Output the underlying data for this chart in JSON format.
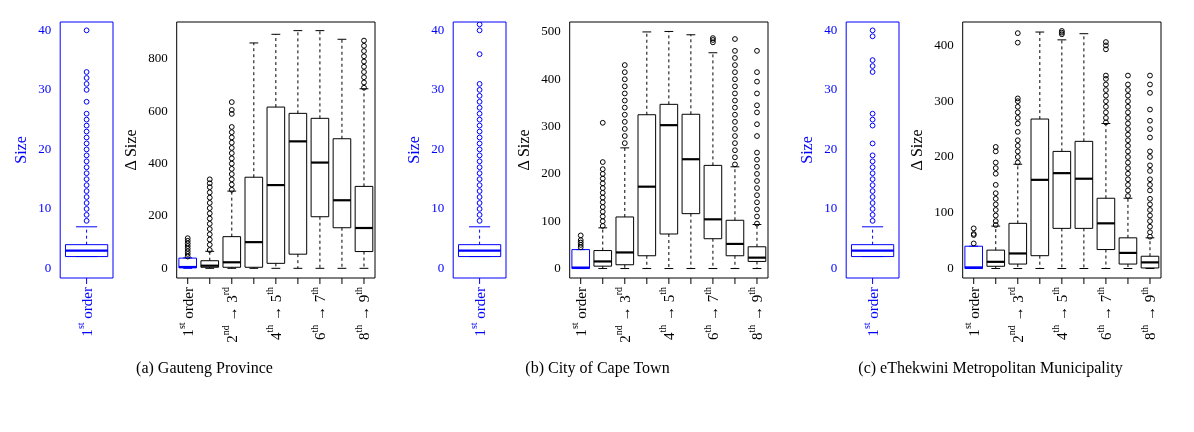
{
  "chart_data": [
    {
      "type": "box",
      "color": "#0000ff",
      "colors": [
        "#0000ff"
      ],
      "ylabel": "Size",
      "ylim": [
        -1.6,
        41.4
      ],
      "yticks": [
        0,
        10,
        20,
        30,
        40
      ],
      "categories": [
        "1$^{st}$ order"
      ],
      "boxes": [
        {
          "low": 2,
          "q1": 2,
          "median": 3,
          "q3": 4,
          "high": 7,
          "outliers": [
            8,
            9,
            10,
            11,
            12,
            13,
            14,
            15,
            16,
            17,
            18,
            19,
            20,
            21,
            22,
            23,
            24,
            25,
            26,
            28,
            30,
            31,
            32,
            33,
            40
          ]
        }
      ],
      "annotations": [
        "(a) Gauteng Province"
      ]
    },
    {
      "type": "box",
      "color": "#000000",
      "colors": [
        "#0000ff",
        "#000000",
        "#000000",
        "#000000",
        "#000000",
        "#000000",
        "#000000",
        "#000000",
        "#000000"
      ],
      "ylabel": "Δ Size",
      "ylim": [
        -37,
        941
      ],
      "yticks": [
        0,
        200,
        400,
        600,
        800
      ],
      "categories": [
        "1$^{st}$ order",
        null,
        "2$^{nd}$ → 3$^{rd}$",
        null,
        "4$^{th}$ → 5$^{th}$",
        null,
        "6$^{th}$ → 7$^{th}$",
        null,
        "8$^{th}$ → 9$^{th}$"
      ],
      "boxes": [
        {
          "low": 0,
          "q1": 2,
          "median": 5,
          "q3": 39,
          "high": 40,
          "outliers": [
            45,
            55,
            65,
            75,
            85,
            95,
            105,
            115
          ]
        },
        {
          "low": 0,
          "q1": 4,
          "median": 10,
          "q3": 29,
          "high": 65,
          "outliers": [
            70,
            90,
            110,
            130,
            150,
            170,
            190,
            210,
            230,
            250,
            270,
            290,
            310,
            325,
            340
          ]
        },
        {
          "low": 0,
          "q1": 4,
          "median": 23,
          "q3": 121,
          "high": 295,
          "outliers": [
            300,
            320,
            340,
            360,
            380,
            400,
            420,
            440,
            460,
            480,
            500,
            520,
            540,
            590,
            605,
            635
          ]
        },
        {
          "low": 0,
          "q1": 4,
          "median": 100,
          "q3": 348,
          "high": 861
        },
        {
          "low": 0,
          "q1": 19,
          "median": 318,
          "q3": 616,
          "high": 894
        },
        {
          "low": 0,
          "q1": 54,
          "median": 485,
          "q3": 592,
          "high": 908
        },
        {
          "low": 0,
          "q1": 197,
          "median": 404,
          "q3": 573,
          "high": 908
        },
        {
          "low": 0,
          "q1": 155,
          "median": 260,
          "q3": 495,
          "high": 875
        },
        {
          "low": 0,
          "q1": 64,
          "median": 154,
          "q3": 313,
          "high": 686,
          "outliers": [
            690,
            710,
            730,
            750,
            770,
            790,
            810,
            830,
            850,
            870
          ]
        }
      ]
    },
    {
      "type": "box",
      "color": "#0000ff",
      "colors": [
        "#0000ff"
      ],
      "ylabel": "Size",
      "ylim": [
        -1.6,
        41.4
      ],
      "yticks": [
        0,
        10,
        20,
        30,
        40
      ],
      "categories": [
        "1$^{st}$ order"
      ],
      "boxes": [
        {
          "low": 2,
          "q1": 2,
          "median": 3,
          "q3": 4,
          "high": 7,
          "outliers": [
            8,
            9,
            10,
            11,
            12,
            13,
            14,
            15,
            16,
            17,
            18,
            19,
            20,
            21,
            22,
            23,
            24,
            25,
            26,
            27,
            28,
            29,
            30,
            31,
            36,
            40,
            41
          ]
        }
      ],
      "annotations": [
        "(b) City of Cape Town"
      ]
    },
    {
      "type": "box",
      "color": "#000000",
      "colors": [
        "#0000ff",
        "#000000",
        "#000000",
        "#000000",
        "#000000",
        "#000000",
        "#000000",
        "#000000",
        "#000000"
      ],
      "ylabel": "Δ Size",
      "ylim": [
        -20,
        521
      ],
      "yticks": [
        0,
        100,
        200,
        300,
        400,
        500
      ],
      "categories": [
        "1$^{st}$ order",
        null,
        "2$^{nd}$ → 3$^{rd}$",
        null,
        "4$^{th}$ → 5$^{th}$",
        null,
        "6$^{th}$ → 7$^{th}$",
        null,
        "8$^{th}$ → 9$^{th}$"
      ],
      "boxes": [
        {
          "low": 0,
          "q1": 0,
          "median": 2,
          "q3": 40,
          "high": 40,
          "outliers": [
            45,
            50,
            55,
            60,
            70
          ]
        },
        {
          "low": 0,
          "q1": 5,
          "median": 15,
          "q3": 38,
          "high": 86,
          "outliers": [
            90,
            100,
            110,
            120,
            130,
            140,
            150,
            160,
            170,
            180,
            190,
            200,
            210,
            225,
            308
          ]
        },
        {
          "low": 0,
          "q1": 8,
          "median": 34,
          "q3": 109,
          "high": 255,
          "outliers": [
            265,
            280,
            295,
            310,
            325,
            340,
            355,
            370,
            385,
            400,
            415,
            430
          ]
        },
        {
          "low": 0,
          "q1": 27,
          "median": 173,
          "q3": 325,
          "high": 500
        },
        {
          "low": 0,
          "q1": 73,
          "median": 303,
          "q3": 347,
          "high": 501
        },
        {
          "low": 0,
          "q1": 116,
          "median": 231,
          "q3": 326,
          "high": 494
        },
        {
          "low": 0,
          "q1": 63,
          "median": 104,
          "q3": 218,
          "high": 456,
          "outliers": [
            478,
            483,
            487
          ]
        },
        {
          "low": 0,
          "q1": 27,
          "median": 52,
          "q3": 102,
          "high": 215,
          "outliers": [
            220,
            235,
            250,
            265,
            280,
            295,
            310,
            325,
            340,
            355,
            370,
            385,
            400,
            415,
            430,
            445,
            460,
            485
          ]
        },
        {
          "low": 0,
          "q1": 15,
          "median": 23,
          "q3": 46,
          "high": 93,
          "outliers": [
            95,
            110,
            125,
            140,
            155,
            170,
            185,
            200,
            215,
            230,
            245,
            280,
            305,
            330,
            345,
            370,
            395,
            415,
            460
          ]
        }
      ]
    },
    {
      "type": "box",
      "color": "#0000ff",
      "colors": [
        "#0000ff"
      ],
      "ylabel": "Size",
      "ylim": [
        -1.6,
        41.4
      ],
      "yticks": [
        0,
        10,
        20,
        30,
        40
      ],
      "categories": [
        "1$^{st}$ order"
      ],
      "boxes": [
        {
          "low": 2,
          "q1": 2,
          "median": 3,
          "q3": 4,
          "high": 7,
          "outliers": [
            8,
            9,
            10,
            11,
            12,
            13,
            14,
            15,
            16,
            17,
            18,
            19,
            21,
            24,
            25,
            26,
            33,
            34,
            35,
            39,
            40
          ]
        }
      ],
      "annotations": [
        "(c) eThekwini Metropolitan Municipality"
      ]
    },
    {
      "type": "box",
      "color": "#000000",
      "colors": [
        "#0000ff",
        "#000000",
        "#000000",
        "#000000",
        "#000000",
        "#000000",
        "#000000",
        "#000000",
        "#000000"
      ],
      "ylabel": "Δ Size",
      "ylim": [
        -17,
        442
      ],
      "yticks": [
        0,
        100,
        200,
        300,
        400
      ],
      "categories": [
        "1$^{st}$ order",
        null,
        "2$^{nd}$ → 3$^{rd}$",
        null,
        "4$^{th}$ → 5$^{th}$",
        null,
        "6$^{th}$ → 7$^{th}$",
        null,
        "8$^{th}$ → 9$^{th}$"
      ],
      "boxes": [
        {
          "low": 0,
          "q1": 0,
          "median": 2,
          "q3": 40,
          "high": 40,
          "outliers": [
            45,
            60,
            62,
            72
          ]
        },
        {
          "low": 0,
          "q1": 4,
          "median": 12,
          "q3": 33,
          "high": 76,
          "outliers": [
            78,
            85,
            95,
            105,
            115,
            125,
            135,
            150,
            170,
            180,
            190,
            210,
            218
          ]
        },
        {
          "low": 0,
          "q1": 8,
          "median": 27,
          "q3": 81,
          "high": 187,
          "outliers": [
            190,
            200,
            210,
            220,
            230,
            245,
            260,
            270,
            280,
            290,
            300,
            305,
            405,
            422
          ]
        },
        {
          "low": 0,
          "q1": 23,
          "median": 159,
          "q3": 268,
          "high": 424
        },
        {
          "low": 0,
          "q1": 72,
          "median": 171,
          "q3": 210,
          "high": 410,
          "outliers": [
            420,
            423,
            426
          ]
        },
        {
          "low": 0,
          "q1": 72,
          "median": 161,
          "q3": 228,
          "high": 421
        },
        {
          "low": 0,
          "q1": 34,
          "median": 81,
          "q3": 126,
          "high": 260,
          "outliers": [
            262,
            270,
            280,
            290,
            300,
            310,
            320,
            330,
            340,
            346,
            393,
            400,
            406
          ]
        },
        {
          "low": 0,
          "q1": 8,
          "median": 28,
          "q3": 55,
          "high": 126,
          "outliers": [
            130,
            140,
            150,
            160,
            170,
            180,
            190,
            200,
            210,
            220,
            230,
            240,
            250,
            260,
            270,
            280,
            290,
            300,
            310,
            320,
            330,
            346
          ]
        },
        {
          "low": 0,
          "q1": 1,
          "median": 11,
          "q3": 22,
          "high": 55,
          "outliers": [
            57,
            65,
            75,
            85,
            95,
            105,
            115,
            125,
            140,
            150,
            160,
            175,
            185,
            200,
            210,
            235,
            250,
            265,
            285,
            315,
            330,
            346
          ]
        }
      ]
    }
  ]
}
